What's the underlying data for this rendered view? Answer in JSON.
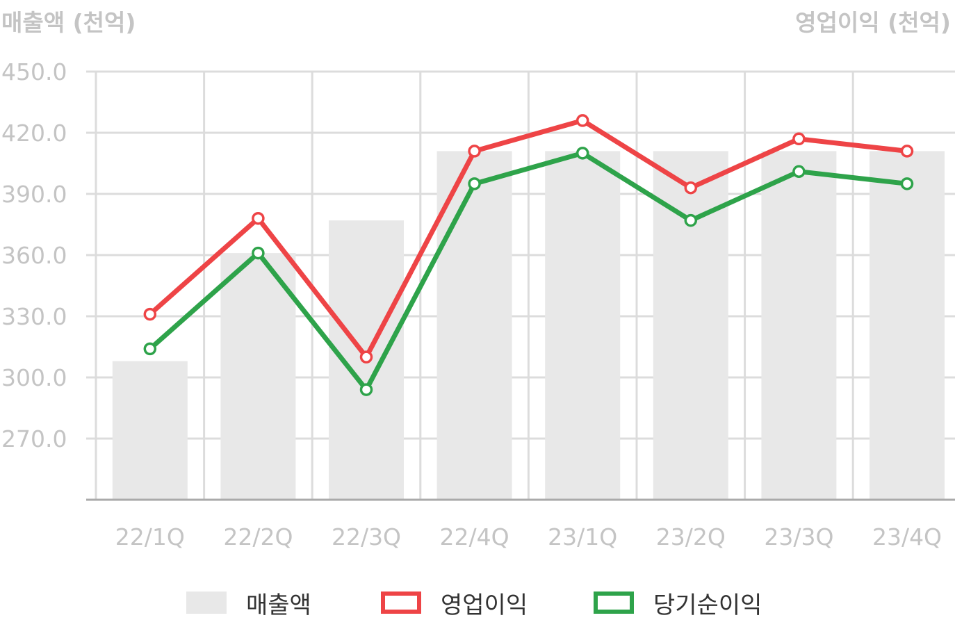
{
  "chart_data": {
    "type": "bar",
    "title": "",
    "ylabel": "매출액 (천억)",
    "ylabel_right": "영업이익 (천억)",
    "xlabel": "",
    "categories": [
      "22/1Q",
      "22/2Q",
      "22/3Q",
      "22/4Q",
      "23/1Q",
      "23/2Q",
      "23/3Q",
      "23/4Q"
    ],
    "ylim": [
      240,
      450
    ],
    "yticks": [
      "450.0",
      "420.0",
      "390.0",
      "360.0",
      "330.0",
      "300.0",
      "270.0"
    ],
    "ytick_values": [
      450,
      420,
      390,
      360,
      330,
      300,
      270
    ],
    "grid": true,
    "legend_position": "bottom",
    "series": [
      {
        "name": "매출액",
        "kind": "bar",
        "color": "#e8e8e8",
        "values": [
          308,
          361,
          377,
          411,
          411,
          411,
          411,
          411
        ]
      },
      {
        "name": "영업이익",
        "kind": "line",
        "color": "#ee4446",
        "values": [
          331,
          378,
          310,
          411,
          426,
          393,
          417,
          411
        ]
      },
      {
        "name": "당기순이익",
        "kind": "line",
        "color": "#2ea34a",
        "values": [
          314,
          361,
          294,
          395,
          410,
          377,
          401,
          395
        ]
      }
    ]
  }
}
